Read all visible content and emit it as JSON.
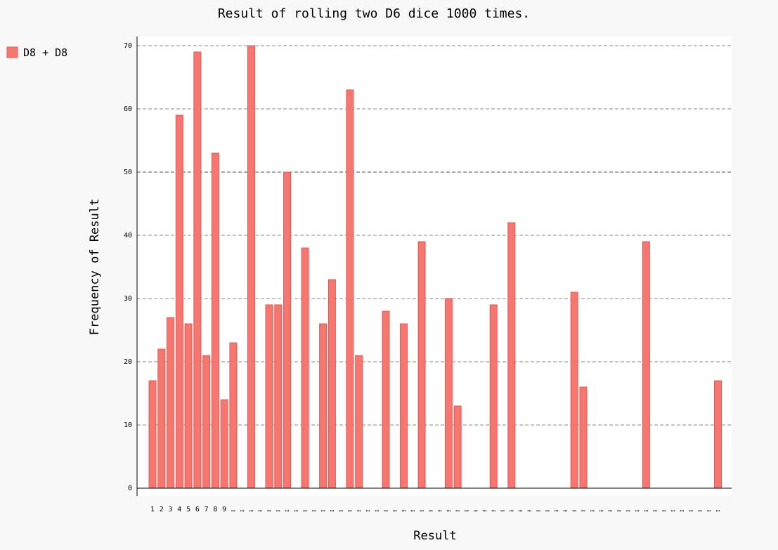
{
  "chart_data": {
    "type": "bar",
    "title": "Result of rolling two D6 dice 1000 times.",
    "xlabel": "Result",
    "ylabel": "Frequency of Result",
    "ylim": [
      0,
      70
    ],
    "y_ticks": [
      0,
      10,
      20,
      30,
      40,
      50,
      60,
      70
    ],
    "grid": true,
    "legend_position": "top-left",
    "categories": [
      "1",
      "2",
      "3",
      "4",
      "5",
      "6",
      "7",
      "8",
      "9",
      "…",
      "…",
      "…",
      "…",
      "…",
      "…",
      "…",
      "…",
      "…",
      "…",
      "…",
      "…",
      "…",
      "…",
      "…",
      "…",
      "…",
      "…",
      "…",
      "…",
      "…",
      "…",
      "…",
      "…",
      "…",
      "…",
      "…",
      "…",
      "…",
      "…",
      "…",
      "…",
      "…",
      "…",
      "…",
      "…",
      "…",
      "…",
      "…",
      "…",
      "…",
      "…",
      "…",
      "…",
      "…",
      "…",
      "…",
      "…",
      "…",
      "…",
      "…",
      "…",
      "…",
      "…",
      "…"
    ],
    "series": [
      {
        "name": "D8 + D8",
        "color": "#f87670",
        "values": [
          17,
          22,
          27,
          59,
          26,
          69,
          21,
          53,
          14,
          23,
          0,
          70,
          0,
          29,
          29,
          50,
          0,
          38,
          0,
          26,
          33,
          0,
          63,
          21,
          0,
          0,
          28,
          0,
          26,
          0,
          39,
          0,
          0,
          30,
          13,
          0,
          0,
          0,
          29,
          0,
          42,
          0,
          0,
          0,
          0,
          0,
          0,
          31,
          16,
          0,
          0,
          0,
          0,
          0,
          0,
          39,
          0,
          0,
          0,
          0,
          0,
          0,
          0,
          17
        ]
      }
    ]
  }
}
